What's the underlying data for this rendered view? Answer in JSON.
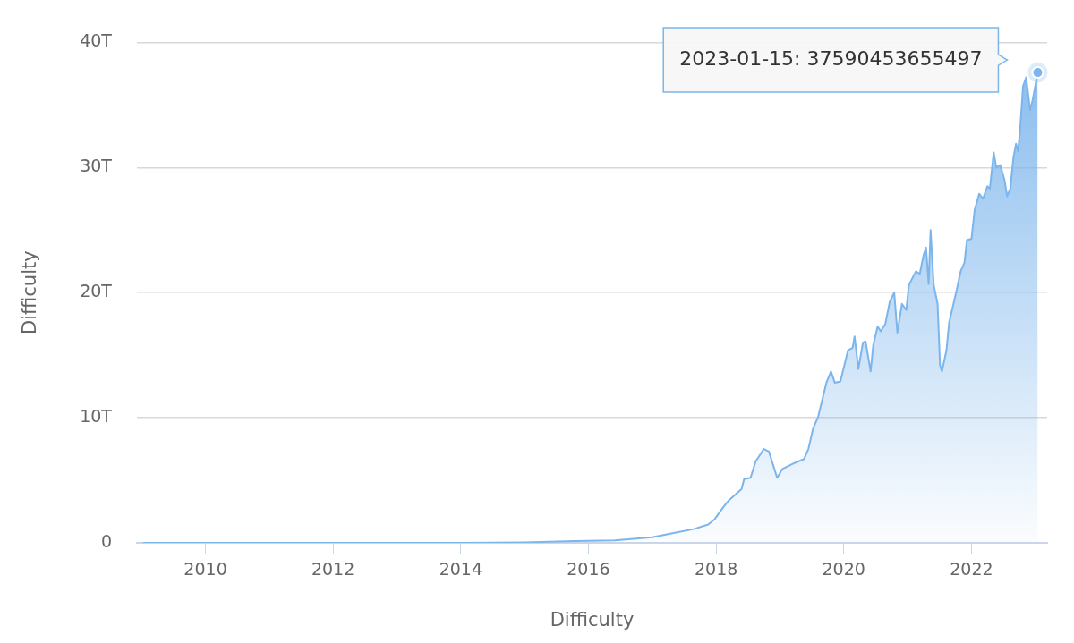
{
  "chart_data": {
    "type": "area",
    "xlabel": "Difficulty",
    "ylabel": "Difficulty",
    "xlim": [
      "2008-12-05",
      "2023-03-10"
    ],
    "xticks": [
      "2010",
      "2012",
      "2014",
      "2016",
      "2018",
      "2020",
      "2022"
    ],
    "ylim": [
      0,
      40000000000000
    ],
    "yticks": [
      {
        "value": 0,
        "label": "0"
      },
      {
        "value": 10000000000000,
        "label": "10T"
      },
      {
        "value": 20000000000000,
        "label": "20T"
      },
      {
        "value": 30000000000000,
        "label": "30T"
      },
      {
        "value": 40000000000000,
        "label": "40T"
      }
    ],
    "grid": "y",
    "annotations": [
      {
        "text": "2023-01-15: 37590453655497",
        "x": "2023-01-15",
        "y": 37590453655497
      }
    ],
    "series": [
      {
        "color": "#7cb5ec",
        "x": [
          "2009-01-09",
          "2012-01-01",
          "2014-01-01",
          "2015-01-01",
          "2015-10-15",
          "2016-06-01",
          "2017-01-01",
          "2017-08-25",
          "2017-11-17",
          "2017-12-24",
          "2018-02-14",
          "2018-03-15",
          "2018-05-27",
          "2018-06-10",
          "2018-07-17",
          "2018-08-15",
          "2018-10-01",
          "2018-10-30",
          "2018-12-16",
          "2019-01-15",
          "2019-03-29",
          "2019-05-19",
          "2019-06-13",
          "2019-07-09",
          "2019-08-07",
          "2019-09-24",
          "2019-10-20",
          "2019-11-11",
          "2019-12-13",
          "2020-01-26",
          "2020-02-21",
          "2020-03-03",
          "2020-03-25",
          "2020-04-20",
          "2020-05-05",
          "2020-06-03",
          "2020-06-18",
          "2020-07-13",
          "2020-07-31",
          "2020-08-26",
          "2020-09-21",
          "2020-10-16",
          "2020-11-03",
          "2020-11-29",
          "2020-12-24",
          "2021-01-08",
          "2021-02-17",
          "2021-03-11",
          "2021-04-02",
          "2021-04-16",
          "2021-05-01",
          "2021-05-12",
          "2021-05-30",
          "2021-06-21",
          "2021-07-05",
          "2021-07-16",
          "2021-08-11",
          "2021-08-26",
          "2021-10-05",
          "2021-10-31",
          "2021-11-22",
          "2021-12-06",
          "2022-01-01",
          "2022-01-19",
          "2022-02-14",
          "2022-03-08",
          "2022-04-02",
          "2022-04-16",
          "2022-05-08",
          "2022-05-23",
          "2022-06-14",
          "2022-07-09",
          "2022-07-24",
          "2022-08-11",
          "2022-08-29",
          "2022-09-13",
          "2022-09-24",
          "2022-10-05",
          "2022-10-23",
          "2022-11-10",
          "2022-12-02",
          "2022-12-17",
          "2023-01-15"
        ],
        "values": [
          0,
          0,
          0,
          40000000000,
          150000000000,
          200000000000,
          440000000000,
          1100000000000,
          1470000000000,
          1900000000000,
          2900000000000,
          3400000000000,
          4300000000000,
          5100000000000,
          5200000000000,
          6500000000000,
          7500000000000,
          7300000000000,
          5200000000000,
          5900000000000,
          6400000000000,
          6700000000000,
          7500000000000,
          9100000000000,
          10050000000000,
          12800000000000,
          13700000000000,
          12800000000000,
          12900000000000,
          15400000000000,
          15600000000000,
          16500000000000,
          13900000000000,
          16000000000000,
          16100000000000,
          13700000000000,
          15800000000000,
          17300000000000,
          16900000000000,
          17500000000000,
          19300000000000,
          20000000000000,
          16800000000000,
          19100000000000,
          18600000000000,
          20600000000000,
          21700000000000,
          21500000000000,
          23000000000000,
          23600000000000,
          20700000000000,
          25000000000000,
          20600000000000,
          19100000000000,
          14200000000000,
          13700000000000,
          15400000000000,
          17600000000000,
          20000000000000,
          21700000000000,
          22400000000000,
          24200000000000,
          24300000000000,
          26600000000000,
          27900000000000,
          27500000000000,
          28500000000000,
          28300000000000,
          31200000000000,
          30000000000000,
          30200000000000,
          29000000000000,
          27700000000000,
          28300000000000,
          30800000000000,
          31900000000000,
          31300000000000,
          32800000000000,
          36500000000000,
          37200000000000,
          34600000000000,
          35400000000000,
          37590453655497
        ]
      }
    ]
  }
}
